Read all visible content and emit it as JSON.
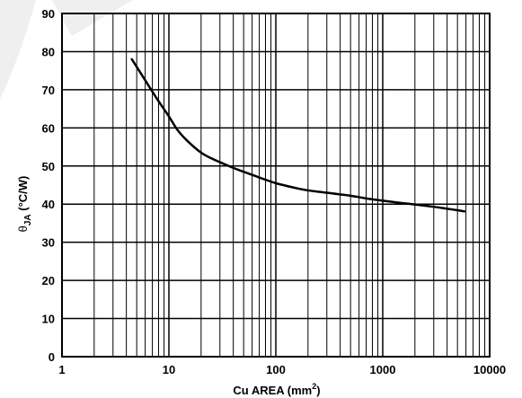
{
  "chart_data": {
    "type": "line",
    "xscale": "log",
    "xlim": [
      1,
      10000
    ],
    "ylim": [
      0,
      90
    ],
    "grid": true,
    "xlabel_main": "Cu AREA (mm",
    "xlabel_sup": "2",
    "xlabel_close": ")",
    "ylabel_symbol": "θ",
    "ylabel_sub": "JA",
    "ylabel_unit": " (°C/W)",
    "x_ticks": [
      1,
      10,
      100,
      1000,
      10000
    ],
    "x_tick_labels": [
      "1",
      "10",
      "100",
      "1000",
      "10000"
    ],
    "y_ticks": [
      0,
      10,
      20,
      30,
      40,
      50,
      60,
      70,
      80,
      90
    ],
    "y_tick_labels": [
      "0",
      "10",
      "20",
      "30",
      "40",
      "50",
      "60",
      "70",
      "80",
      "90"
    ],
    "series": [
      {
        "x": [
          4.5,
          5,
          6,
          7,
          8,
          10,
          12,
          15,
          20,
          25,
          30,
          40,
          50,
          70,
          100,
          150,
          200,
          300,
          500,
          700,
          1000,
          1500,
          2000,
          3000,
          4000,
          5000,
          5800
        ],
        "y": [
          78,
          76,
          72.5,
          69.5,
          67,
          63,
          59.5,
          56.5,
          53.5,
          52,
          51,
          49.5,
          48.5,
          47,
          45.5,
          44.3,
          43.6,
          43,
          42.2,
          41.5,
          40.9,
          40.3,
          39.9,
          39.3,
          38.8,
          38.4,
          38.1
        ]
      }
    ]
  }
}
